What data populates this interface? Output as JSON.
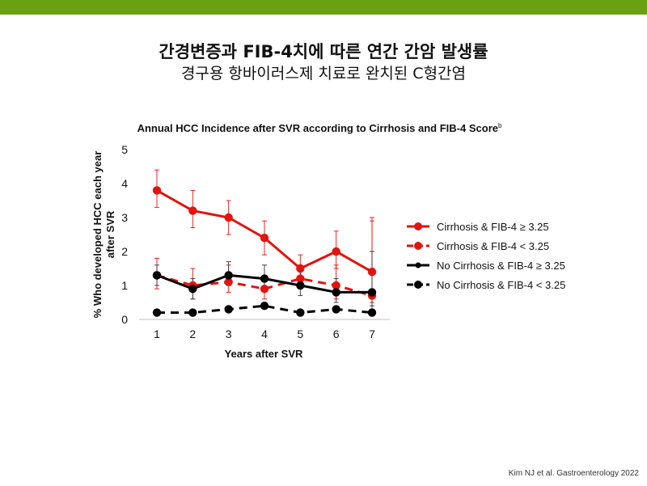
{
  "slide": {
    "title": "간경변증과 FIB-4치에 따른 연간 간암 발생률",
    "subtitle": "경구용 항바이러스제 치료로 완치된 C형간염",
    "citation": "Kim NJ et al. Gastroenterology  2022",
    "accent_color": "#6aa111"
  },
  "chart_data": {
    "type": "line",
    "title": "Annual HCC Incidence after SVR according to Cirrhosis and FIB-4 Score",
    "title_superscript": "b",
    "xlabel": "Years after SVR",
    "ylabel": "% Who developed HCC each year after SVR",
    "ylabel_lines": [
      "% Who developed HCC each year",
      "after SVR"
    ],
    "x": [
      1,
      2,
      3,
      4,
      5,
      6,
      7
    ],
    "ylim": [
      0,
      5
    ],
    "yticks": [
      0,
      1,
      2,
      3,
      4,
      5
    ],
    "legend_position": "right",
    "series": [
      {
        "name": "Cirrhosis & FIB-4 ≥ 3.25",
        "color": "#e3130e",
        "dash": false,
        "values": [
          3.8,
          3.2,
          3.0,
          2.4,
          1.5,
          2.0,
          1.4
        ],
        "err_low": [
          3.3,
          2.7,
          2.5,
          1.9,
          1.1,
          1.5,
          0.5
        ],
        "err_high": [
          4.4,
          3.8,
          3.5,
          2.9,
          1.9,
          2.6,
          3.0
        ]
      },
      {
        "name": "Cirrhosis & FIB-4 < 3.25",
        "color": "#e3130e",
        "dash": true,
        "values": [
          1.3,
          1.0,
          1.1,
          0.9,
          1.2,
          1.0,
          0.7
        ],
        "err_low": [
          0.9,
          0.6,
          0.8,
          0.6,
          0.9,
          0.6,
          0.3
        ],
        "err_high": [
          1.8,
          1.5,
          1.6,
          1.3,
          1.6,
          1.6,
          2.9
        ]
      },
      {
        "name": "No Cirrhosis & FIB-4 ≥ 3.25",
        "color": "#000000",
        "dash": false,
        "values": [
          1.3,
          0.9,
          1.3,
          1.2,
          1.0,
          0.8,
          0.8
        ],
        "err_low": [
          1.0,
          0.6,
          1.0,
          0.9,
          0.7,
          0.5,
          0.4
        ],
        "err_high": [
          1.6,
          1.2,
          1.7,
          1.6,
          1.4,
          1.2,
          2.0
        ]
      },
      {
        "name": "No Cirrhosis & FIB-4 < 3.25",
        "color": "#000000",
        "dash": true,
        "values": [
          0.2,
          0.2,
          0.3,
          0.4,
          0.2,
          0.3,
          0.2
        ],
        "err_low": [
          0.2,
          0.2,
          0.3,
          0.4,
          0.2,
          0.3,
          0.2
        ],
        "err_high": [
          0.2,
          0.2,
          0.3,
          0.4,
          0.2,
          0.3,
          0.2
        ]
      }
    ]
  }
}
